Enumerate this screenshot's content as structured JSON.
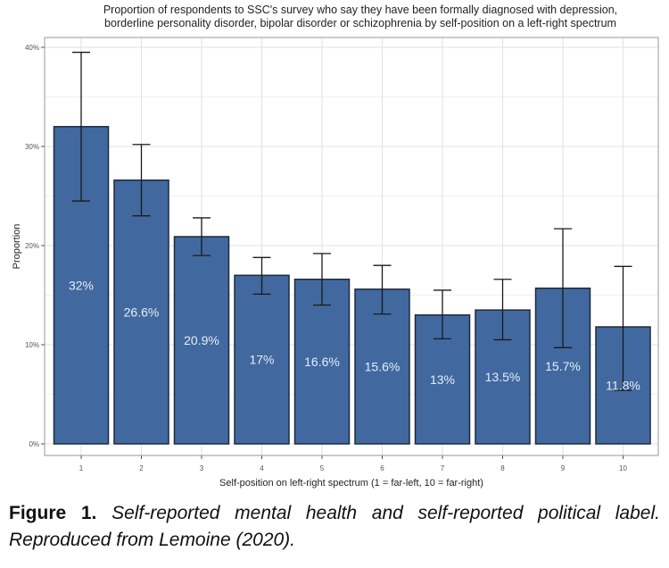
{
  "chart_data": {
    "type": "bar",
    "title": "Proportion of respondents to SSC's survey who say they have been formally diagnosed with depression,\nborderline personality disorder, bipolar disorder or schizophrenia by self-position on a left-right spectrum",
    "xlabel": "Self-position on left-right spectrum (1 = far-left, 10 = far-right)",
    "ylabel": "Proportion",
    "categories": [
      "1",
      "2",
      "3",
      "4",
      "5",
      "6",
      "7",
      "8",
      "9",
      "10"
    ],
    "values": [
      32,
      26.6,
      20.9,
      17,
      16.6,
      15.6,
      13,
      13.5,
      15.7,
      11.8
    ],
    "data_labels": [
      "32%",
      "26.6%",
      "20.9%",
      "17%",
      "16.6%",
      "15.6%",
      "13%",
      "13.5%",
      "15.7%",
      "11.8%"
    ],
    "error_bars": {
      "upper": [
        39.5,
        30.2,
        22.8,
        18.8,
        19.2,
        18.0,
        15.5,
        16.6,
        21.7,
        17.9
      ],
      "lower": [
        24.5,
        23.0,
        19.0,
        15.1,
        14.0,
        13.1,
        10.6,
        10.5,
        9.7,
        5.4
      ]
    },
    "ylim": [
      0,
      41
    ],
    "yticks": [
      0,
      10,
      20,
      30,
      40
    ],
    "ytick_labels": [
      "0%",
      "10%",
      "20%",
      "30%",
      "40%"
    ],
    "grid": true,
    "colors": {
      "bar": "#4169a0",
      "bar_border": "#1f2a3a",
      "label": "#e6ecf5"
    }
  },
  "caption": {
    "label": "Figure 1.",
    "text": "Self-reported mental health and self-reported political label. Reproduced from Lemoine (2020)."
  }
}
